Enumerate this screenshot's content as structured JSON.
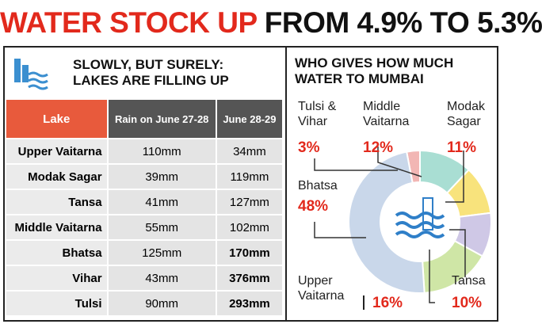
{
  "title": {
    "part1": "WATER STOCK UP",
    "part2": "FROM 4.9% TO 5.3%"
  },
  "left_heading": {
    "line1": "SLOWLY, BUT SURELY:",
    "line2": "LAKES ARE FILLING UP"
  },
  "table": {
    "header": [
      "Lake",
      "Rain on June 27-28",
      "June 28-29"
    ],
    "rows": [
      [
        "Upper Vaitarna",
        "110mm",
        "34mm"
      ],
      [
        "Modak Sagar",
        "39mm",
        "119mm"
      ],
      [
        "Tansa",
        "41mm",
        "127mm"
      ],
      [
        "Middle Vaitarna",
        "55mm",
        "102mm"
      ],
      [
        "Bhatsa",
        "125mm",
        "170mm"
      ],
      [
        "Vihar",
        "43mm",
        "376mm"
      ],
      [
        "Tulsi",
        "90mm",
        "293mm"
      ]
    ]
  },
  "chart_data": {
    "type": "donut",
    "title": "WHO GIVES HOW MUCH WATER TO MUMBAI",
    "categories": [
      "Tulsi & Vihar",
      "Middle Vaitarna",
      "Modak Sagar",
      "Tansa",
      "Upper Vaitarna",
      "Bhatsa"
    ],
    "values": [
      3,
      12,
      11,
      10,
      16,
      48
    ],
    "value_labels": [
      "3%",
      "12%",
      "11%",
      "10%",
      "16%",
      "48%"
    ],
    "colors": [
      "#f2b6b4",
      "#a9ded3",
      "#f8e37c",
      "#cfc8e6",
      "#cfe6a6",
      "#c9d7ea"
    ]
  }
}
